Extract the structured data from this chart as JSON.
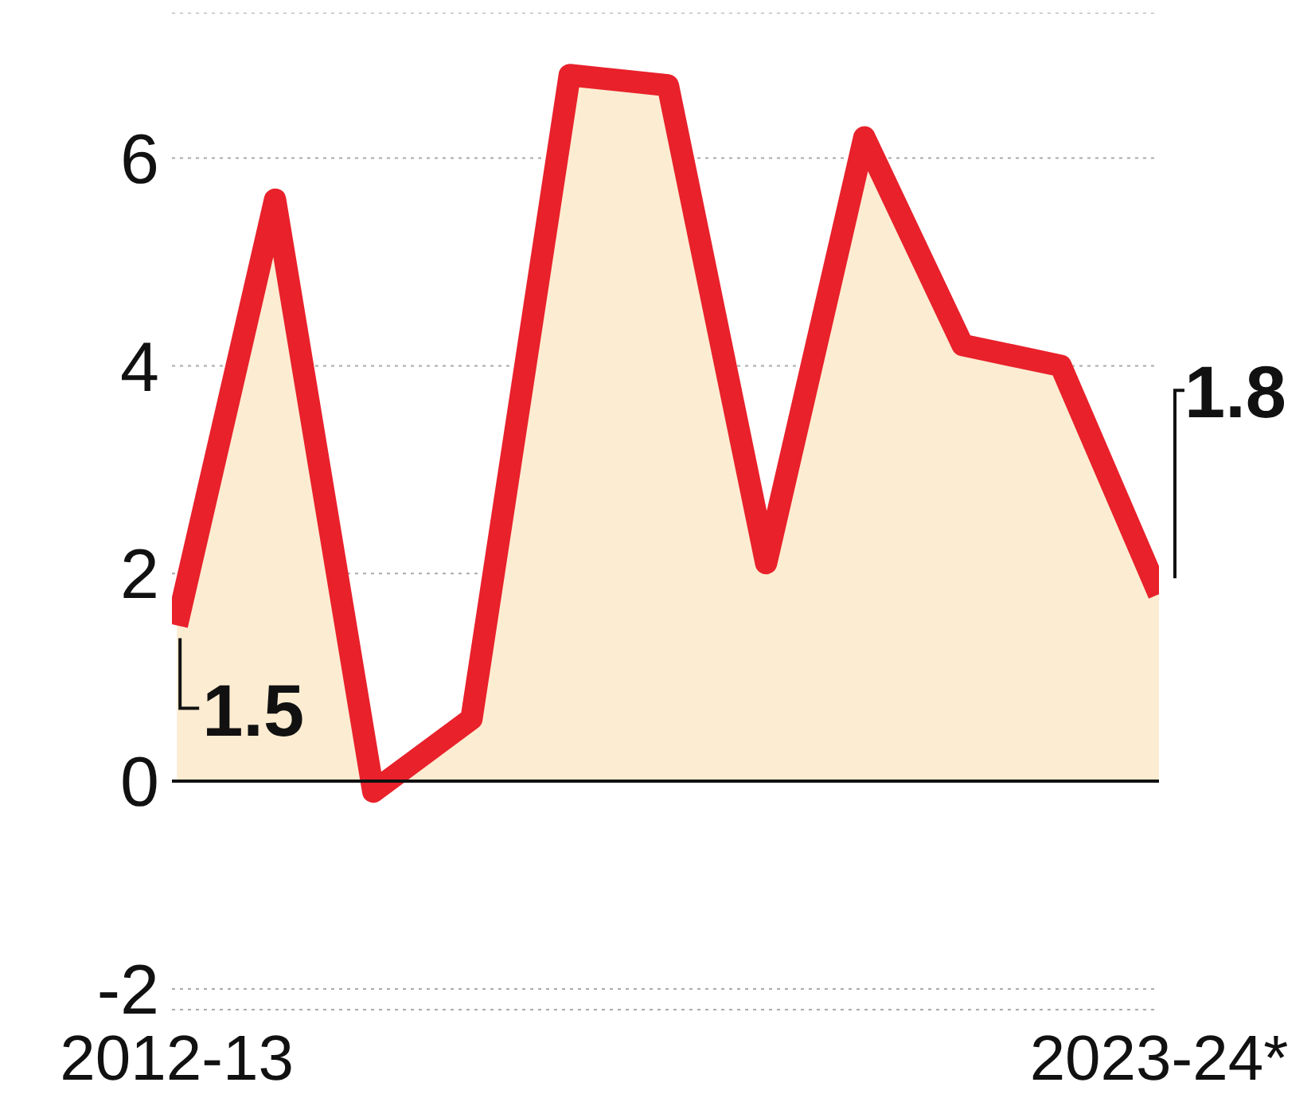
{
  "chart_data": {
    "type": "area",
    "categories": [
      "2012-13",
      null,
      null,
      null,
      null,
      null,
      null,
      null,
      null,
      null,
      "2023-24*"
    ],
    "series": [
      {
        "color": "#e8212b",
        "values": [
          1.5,
          5.6,
          -0.1,
          0.6,
          6.8,
          6.7,
          2.1,
          6.2,
          4.2,
          4.0,
          1.8
        ]
      }
    ],
    "ylim": [
      -2.2,
      7.4
    ],
    "yticks": [
      -2,
      0,
      2,
      4,
      6
    ],
    "grid": "y",
    "legend": false,
    "annotations": [
      {
        "text": "1.5",
        "x": "2012-13",
        "y": 1.5
      },
      {
        "text": "1.8",
        "x": "2023-24*",
        "y": 1.8
      }
    ]
  }
}
